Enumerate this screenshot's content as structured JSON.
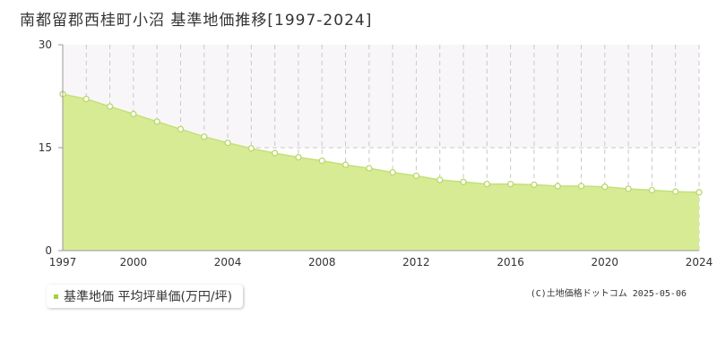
{
  "title": "南都留郡西桂町小沼 基準地価推移[1997-2024]",
  "legend_label": "基準地価 平均坪単価(万円/坪)",
  "copyright": "(C)土地価格ドットコム 2025-05-06",
  "colors": {
    "fill": "#d7eb94",
    "line": "#c5e07a",
    "marker_fill": "#ffffff",
    "marker_stroke": "#b9d86a",
    "legend_swatch": "#a6cf3c",
    "band": "#f9f6f9",
    "grid": "#c9c9c9",
    "axis": "#999999"
  },
  "chart_data": {
    "type": "area",
    "title": "南都留郡西桂町小沼 基準地価推移[1997-2024]",
    "xlabel": "",
    "ylabel": "",
    "x": [
      1997,
      1998,
      1999,
      2000,
      2001,
      2002,
      2003,
      2004,
      2005,
      2006,
      2007,
      2008,
      2009,
      2010,
      2011,
      2012,
      2013,
      2014,
      2015,
      2016,
      2017,
      2018,
      2019,
      2020,
      2021,
      2022,
      2023,
      2024
    ],
    "series": [
      {
        "name": "基準地価 平均坪単価(万円/坪)",
        "values": [
          22.8,
          22.1,
          21.0,
          19.9,
          18.8,
          17.7,
          16.6,
          15.7,
          14.9,
          14.2,
          13.6,
          13.1,
          12.5,
          12.0,
          11.4,
          10.9,
          10.3,
          10.0,
          9.7,
          9.7,
          9.6,
          9.4,
          9.4,
          9.3,
          9.0,
          8.8,
          8.6,
          8.5
        ]
      }
    ],
    "ylim": [
      0,
      30
    ],
    "yticks": [
      0,
      15,
      30
    ],
    "xticks": [
      1997,
      2000,
      2004,
      2008,
      2012,
      2016,
      2020,
      2024
    ],
    "grid": true,
    "legend_position": "bottom-left"
  }
}
